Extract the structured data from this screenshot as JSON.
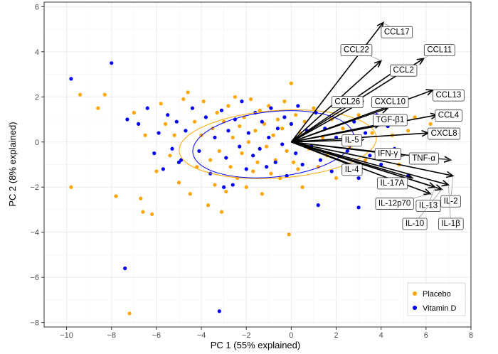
{
  "chart_data": {
    "type": "scatter",
    "subtype": "pca-biplot",
    "xlabel": "PC 1 (55% explained)",
    "ylabel": "PC 2 (8% explained)",
    "xlim": [
      -11,
      8
    ],
    "ylim": [
      -8.2,
      6.2
    ],
    "xticks": [
      -10,
      -8,
      -6,
      -4,
      -2,
      0,
      2,
      4,
      6,
      8
    ],
    "yticks": [
      -8,
      -6,
      -4,
      -2,
      0,
      2,
      4,
      6
    ],
    "grid": true,
    "legend_position": "bottom-right",
    "colors": {
      "placebo": "#FFA500",
      "vitamin_d": "#0000FF",
      "panel_border": "#333333",
      "grid": "#ebebeb",
      "arrow": "#000000"
    },
    "series": [
      {
        "name": "Placebo",
        "color": "#FFA500",
        "points": [
          [
            -9.8,
            -2.0
          ],
          [
            -9.4,
            2.1
          ],
          [
            -8.6,
            1.5
          ],
          [
            -8.3,
            2.1
          ],
          [
            -7.8,
            -2.4
          ],
          [
            -7.2,
            -7.6
          ],
          [
            -7.0,
            1.3
          ],
          [
            -6.7,
            -2.5
          ],
          [
            -6.6,
            -3.1
          ],
          [
            -6.5,
            0.3
          ],
          [
            -6.2,
            -3.2
          ],
          [
            -6.0,
            -1.3
          ],
          [
            -5.8,
            1.7
          ],
          [
            -5.6,
            0.8
          ],
          [
            -5.4,
            -0.6
          ],
          [
            -5.2,
            0.3
          ],
          [
            -5.0,
            -1.8
          ],
          [
            -4.8,
            1.9
          ],
          [
            -4.6,
            2.2
          ],
          [
            -4.5,
            -2.3
          ],
          [
            -4.3,
            0.9
          ],
          [
            -4.2,
            -1.1
          ],
          [
            -4.0,
            0.3
          ],
          [
            -3.9,
            1.8
          ],
          [
            -3.7,
            -2.8
          ],
          [
            -3.6,
            -0.8
          ],
          [
            -3.5,
            0.6
          ],
          [
            -3.4,
            -1.9
          ],
          [
            -3.3,
            1.3
          ],
          [
            -3.2,
            -0.4
          ],
          [
            -3.1,
            -3.1
          ],
          [
            -3.0,
            0.9
          ],
          [
            -2.9,
            -2.2
          ],
          [
            -2.8,
            1.6
          ],
          [
            -2.7,
            -1.1
          ],
          [
            -2.6,
            0.2
          ],
          [
            -2.5,
            2.0
          ],
          [
            -2.4,
            -1.6
          ],
          [
            -2.3,
            0.7
          ],
          [
            -2.2,
            -0.5
          ],
          [
            -2.1,
            1.1
          ],
          [
            -2.0,
            -2.0
          ],
          [
            -1.9,
            0.0
          ],
          [
            -1.8,
            1.9
          ],
          [
            -1.7,
            -1.3
          ],
          [
            -1.6,
            0.5
          ],
          [
            -1.5,
            -0.9
          ],
          [
            -1.4,
            1.4
          ],
          [
            -1.3,
            -2.3
          ],
          [
            -1.2,
            0.8
          ],
          [
            -1.1,
            -0.2
          ],
          [
            -1.0,
            1.6
          ],
          [
            -0.9,
            -1.4
          ],
          [
            -0.8,
            0.3
          ],
          [
            -0.7,
            -0.8
          ],
          [
            -0.6,
            1.0
          ],
          [
            -0.5,
            -1.6
          ],
          [
            -0.4,
            0.6
          ],
          [
            -0.3,
            1.8
          ],
          [
            -0.2,
            -0.4
          ],
          [
            -0.1,
            -4.1
          ],
          [
            0.0,
            2.6
          ],
          [
            0.1,
            -0.9
          ],
          [
            0.2,
            1.2
          ],
          [
            0.3,
            -1.2
          ],
          [
            0.4,
            0.4
          ],
          [
            0.5,
            -2.0
          ],
          [
            0.6,
            0.9
          ],
          [
            0.8,
            -0.3
          ],
          [
            1.0,
            1.5
          ],
          [
            1.2,
            -1.1
          ],
          [
            1.4,
            0.2
          ],
          [
            1.6,
            -0.6
          ],
          [
            1.8,
            1.0
          ],
          [
            2.0,
            -1.6
          ],
          [
            2.3,
            0.6
          ],
          [
            2.6,
            -0.2
          ],
          [
            3.0,
            1.2
          ],
          [
            3.3,
            -0.8
          ],
          [
            3.6,
            0.4
          ],
          [
            4.0,
            -0.5
          ],
          [
            4.5,
            0.3
          ],
          [
            4.8,
            -1.0
          ],
          [
            5.2,
            0.5
          ],
          [
            5.5,
            1.1
          ],
          [
            6.2,
            0.8
          ]
        ]
      },
      {
        "name": "Vitamin D",
        "color": "#0000FF",
        "points": [
          [
            -9.8,
            2.8
          ],
          [
            -8.0,
            3.5
          ],
          [
            -7.4,
            -5.6
          ],
          [
            -7.3,
            1.0
          ],
          [
            -6.8,
            0.8
          ],
          [
            -6.4,
            1.5
          ],
          [
            -6.1,
            -0.5
          ],
          [
            -5.9,
            0.4
          ],
          [
            -5.7,
            -1.2
          ],
          [
            -5.5,
            1.2
          ],
          [
            -5.3,
            -0.3
          ],
          [
            -5.1,
            0.9
          ],
          [
            -4.9,
            -0.8
          ],
          [
            -4.7,
            0.5
          ],
          [
            -4.4,
            1.5
          ],
          [
            -4.1,
            -0.4
          ],
          [
            -3.8,
            1.1
          ],
          [
            -3.6,
            -1.4
          ],
          [
            -3.4,
            0.2
          ],
          [
            -3.2,
            -7.5
          ],
          [
            -3.1,
            1.4
          ],
          [
            -2.9,
            -0.7
          ],
          [
            -2.8,
            0.5
          ],
          [
            -2.6,
            -1.9
          ],
          [
            -2.5,
            1.0
          ],
          [
            -2.3,
            -0.2
          ],
          [
            -2.2,
            1.8
          ],
          [
            -2.0,
            -1.2
          ],
          [
            -1.9,
            0.4
          ],
          [
            -1.7,
            -0.6
          ],
          [
            -1.6,
            1.3
          ],
          [
            -1.4,
            -0.3
          ],
          [
            -1.3,
            0.9
          ],
          [
            -1.1,
            -1.1
          ],
          [
            -1.0,
            0.2
          ],
          [
            -0.9,
            1.5
          ],
          [
            -0.7,
            -0.9
          ],
          [
            -0.6,
            0.6
          ],
          [
            -0.4,
            -0.1
          ],
          [
            -0.3,
            1.1
          ],
          [
            -0.2,
            -1.5
          ],
          [
            0.0,
            0.8
          ],
          [
            0.2,
            -0.5
          ],
          [
            0.3,
            1.6
          ],
          [
            0.5,
            -1.0
          ],
          [
            0.7,
            0.5
          ],
          [
            0.9,
            -0.2
          ],
          [
            1.1,
            1.3
          ],
          [
            1.3,
            -0.8
          ],
          [
            1.5,
            0.6
          ],
          [
            1.8,
            -1.3
          ],
          [
            2.0,
            0.2
          ],
          [
            2.3,
            1.6
          ],
          [
            2.5,
            -0.4
          ],
          [
            2.8,
            0.9
          ],
          [
            3.0,
            -1.6
          ],
          [
            3.3,
            0.4
          ],
          [
            3.5,
            -0.6
          ],
          [
            3.8,
            1.2
          ],
          [
            4.0,
            -1.0
          ],
          [
            4.3,
            0.7
          ],
          [
            4.6,
            -0.3
          ],
          [
            4.9,
            1.0
          ],
          [
            5.2,
            -1.5
          ],
          [
            1.2,
            -2.8
          ],
          [
            3.0,
            -2.9
          ],
          [
            -3.0,
            -2.0
          ],
          [
            -5.0,
            -0.9
          ]
        ]
      }
    ],
    "ellipses": [
      {
        "group": "Placebo",
        "center": [
          -0.6,
          -0.1
        ],
        "radius_x": 4.4,
        "radius_y": 1.5,
        "angle_deg": -4
      },
      {
        "group": "Vitamin D",
        "center": [
          -0.8,
          -0.1
        ],
        "radius_x": 3.6,
        "radius_y": 1.45,
        "angle_deg": -6
      }
    ],
    "loadings": [
      {
        "name": "CCL17",
        "x": 4.1,
        "y": 5.3,
        "label_x": 4.7,
        "label_y": 4.9
      },
      {
        "name": "CCL22",
        "x": 4.0,
        "y": 3.6,
        "label_x": 2.9,
        "label_y": 4.1
      },
      {
        "name": "CCL11",
        "x": 5.9,
        "y": 3.7,
        "label_x": 6.6,
        "label_y": 4.1
      },
      {
        "name": "CCL2",
        "x": 4.7,
        "y": 3.2,
        "label_x": 5.0,
        "label_y": 3.2
      },
      {
        "name": "CCL13",
        "x": 6.3,
        "y": 2.3,
        "label_x": 7.0,
        "label_y": 2.1
      },
      {
        "name": "CCL26",
        "x": 3.2,
        "y": 1.8,
        "label_x": 2.5,
        "label_y": 1.8
      },
      {
        "name": "CXCL10",
        "x": 4.3,
        "y": 1.5,
        "label_x": 4.4,
        "label_y": 1.8
      },
      {
        "name": "CCL4",
        "x": 6.5,
        "y": 1.2,
        "label_x": 7.0,
        "label_y": 1.2
      },
      {
        "name": "TGF-β1",
        "x": 4.0,
        "y": 0.8,
        "label_x": 4.4,
        "label_y": 1.0
      },
      {
        "name": "CXCL8",
        "x": 6.1,
        "y": 0.4,
        "label_x": 6.8,
        "label_y": 0.4
      },
      {
        "name": "IL-5",
        "x": 3.2,
        "y": 0.1,
        "label_x": 2.7,
        "label_y": 0.1
      },
      {
        "name": "IFN-γ",
        "x": 5.0,
        "y": -0.6,
        "label_x": 4.3,
        "label_y": -0.5
      },
      {
        "name": "TNF-α",
        "x": 7.1,
        "y": -0.8,
        "label_x": 5.9,
        "label_y": -0.7
      },
      {
        "name": "IL-4",
        "x": 3.1,
        "y": -1.2,
        "label_x": 2.7,
        "label_y": -1.2
      },
      {
        "name": "IL-17A",
        "x": 5.4,
        "y": -1.6,
        "label_x": 4.5,
        "label_y": -1.8
      },
      {
        "name": "IL-12p70",
        "x": 6.2,
        "y": -2.3,
        "label_x": 4.6,
        "label_y": -2.7
      },
      {
        "name": "IL-13",
        "x": 6.4,
        "y": -2.0,
        "label_x": 6.1,
        "label_y": -2.8
      },
      {
        "name": "IL-2",
        "x": 7.2,
        "y": -1.5,
        "label_x": 7.1,
        "label_y": -2.6
      },
      {
        "name": "IL-10",
        "x": 6.7,
        "y": -2.1,
        "label_x": 5.5,
        "label_y": -3.6
      },
      {
        "name": "IL-1β",
        "x": 7.0,
        "y": -1.9,
        "label_x": 7.1,
        "label_y": -3.6
      }
    ],
    "legend": [
      {
        "label": "Placebo",
        "color": "#FFA500"
      },
      {
        "label": "Vitamin D",
        "color": "#0000FF"
      }
    ]
  }
}
